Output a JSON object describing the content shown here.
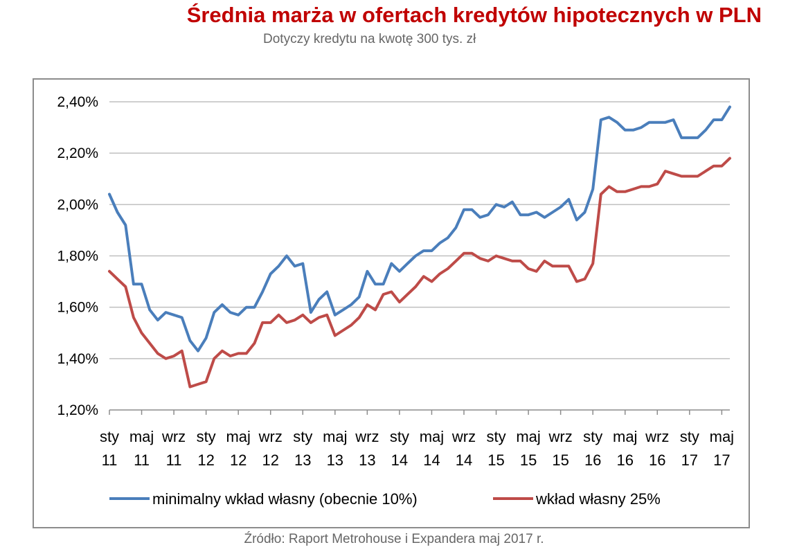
{
  "header": {
    "title": "Średnia marża w ofertach kredytów hipotecznych w PLN",
    "subtitle": "Dotyczy kredytu na kwotę 300 tys. zł"
  },
  "footer": {
    "source": "Źródło: Raport Metrohouse i Expandera maj 2017 r."
  },
  "chart_data": {
    "type": "line",
    "title": "Średnia marża w ofertach kredytów hipotecznych w PLN",
    "subtitle": "Dotyczy kredytu na kwotę 300 tys. zł",
    "xlabel": "",
    "ylabel": "",
    "ylim": [
      1.2,
      2.4
    ],
    "y_ticks": [
      "1,20%",
      "1,40%",
      "1,60%",
      "1,80%",
      "2,00%",
      "2,20%",
      "2,40%"
    ],
    "y_tick_values": [
      1.2,
      1.4,
      1.6,
      1.8,
      2.0,
      2.2,
      2.4
    ],
    "grid": true,
    "legend_position": "bottom",
    "x_ticks": [
      {
        "month_index": 0,
        "line1": "sty",
        "line2": "11"
      },
      {
        "month_index": 4,
        "line1": "maj",
        "line2": "11"
      },
      {
        "month_index": 8,
        "line1": "wrz",
        "line2": "11"
      },
      {
        "month_index": 12,
        "line1": "sty",
        "line2": "12"
      },
      {
        "month_index": 16,
        "line1": "maj",
        "line2": "12"
      },
      {
        "month_index": 20,
        "line1": "wrz",
        "line2": "12"
      },
      {
        "month_index": 24,
        "line1": "sty",
        "line2": "13"
      },
      {
        "month_index": 28,
        "line1": "maj",
        "line2": "13"
      },
      {
        "month_index": 32,
        "line1": "wrz",
        "line2": "13"
      },
      {
        "month_index": 36,
        "line1": "sty",
        "line2": "14"
      },
      {
        "month_index": 40,
        "line1": "maj",
        "line2": "14"
      },
      {
        "month_index": 44,
        "line1": "wrz",
        "line2": "14"
      },
      {
        "month_index": 48,
        "line1": "sty",
        "line2": "15"
      },
      {
        "month_index": 52,
        "line1": "maj",
        "line2": "15"
      },
      {
        "month_index": 56,
        "line1": "wrz",
        "line2": "15"
      },
      {
        "month_index": 60,
        "line1": "sty",
        "line2": "16"
      },
      {
        "month_index": 64,
        "line1": "maj",
        "line2": "16"
      },
      {
        "month_index": 68,
        "line1": "wrz",
        "line2": "16"
      },
      {
        "month_index": 72,
        "line1": "sty",
        "line2": "17"
      },
      {
        "month_index": 76,
        "line1": "maj",
        "line2": "17"
      }
    ],
    "series": [
      {
        "name": "minimalny wkład własny (obecnie 10%)",
        "color": "#4a7ebb",
        "values": [
          2.04,
          1.97,
          1.92,
          1.69,
          1.69,
          1.59,
          1.55,
          1.58,
          1.57,
          1.56,
          1.47,
          1.43,
          1.48,
          1.58,
          1.61,
          1.58,
          1.57,
          1.6,
          1.6,
          1.66,
          1.73,
          1.76,
          1.8,
          1.76,
          1.77,
          1.58,
          1.63,
          1.66,
          1.57,
          1.59,
          1.61,
          1.64,
          1.74,
          1.69,
          1.69,
          1.77,
          1.74,
          1.77,
          1.8,
          1.82,
          1.82,
          1.85,
          1.87,
          1.91,
          1.98,
          1.98,
          1.95,
          1.96,
          2.0,
          1.99,
          2.01,
          1.96,
          1.96,
          1.97,
          1.95,
          1.97,
          1.99,
          2.02,
          1.94,
          1.97,
          2.06,
          2.33,
          2.34,
          2.32,
          2.29,
          2.29,
          2.3,
          2.32,
          2.32,
          2.32,
          2.33,
          2.26,
          2.26,
          2.26,
          2.29,
          2.33,
          2.33,
          2.38
        ]
      },
      {
        "name": "wkład własny 25%",
        "color": "#be4b48",
        "values": [
          1.74,
          1.71,
          1.68,
          1.56,
          1.5,
          1.46,
          1.42,
          1.4,
          1.41,
          1.43,
          1.29,
          1.3,
          1.31,
          1.4,
          1.43,
          1.41,
          1.42,
          1.42,
          1.46,
          1.54,
          1.54,
          1.57,
          1.54,
          1.55,
          1.57,
          1.54,
          1.56,
          1.57,
          1.49,
          1.51,
          1.53,
          1.56,
          1.61,
          1.59,
          1.65,
          1.66,
          1.62,
          1.65,
          1.68,
          1.72,
          1.7,
          1.73,
          1.75,
          1.78,
          1.81,
          1.81,
          1.79,
          1.78,
          1.8,
          1.79,
          1.78,
          1.78,
          1.75,
          1.74,
          1.78,
          1.76,
          1.76,
          1.76,
          1.7,
          1.71,
          1.77,
          2.04,
          2.07,
          2.05,
          2.05,
          2.06,
          2.07,
          2.07,
          2.08,
          2.13,
          2.12,
          2.11,
          2.11,
          2.11,
          2.13,
          2.15,
          2.15,
          2.18
        ]
      }
    ]
  }
}
